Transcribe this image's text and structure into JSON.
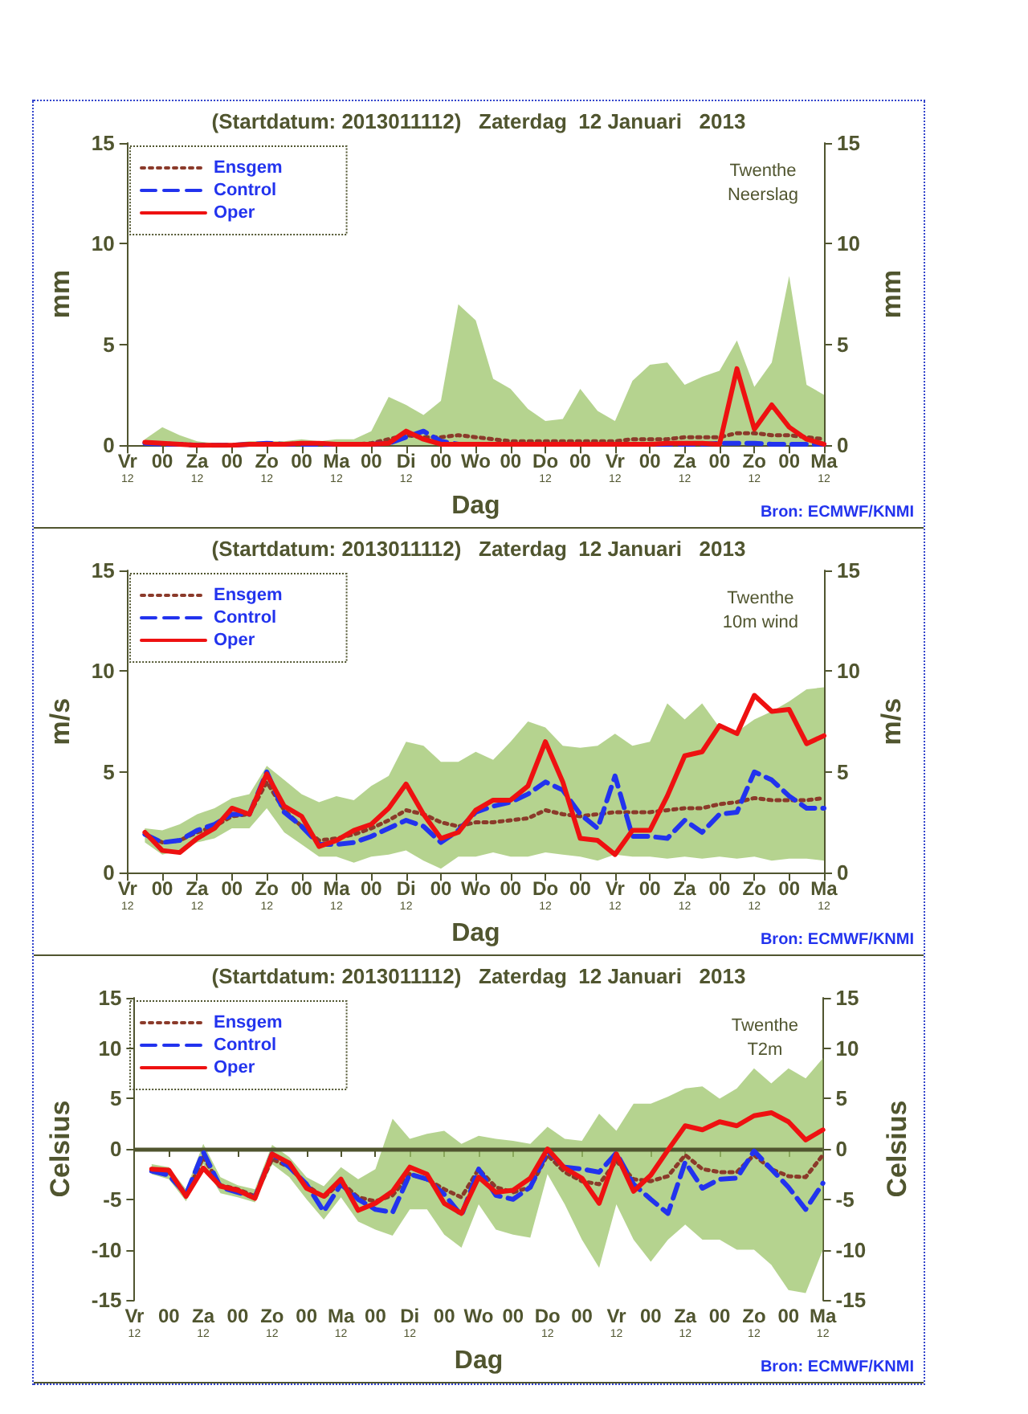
{
  "chart_data": [
    {
      "type": "line",
      "title": "(Startdatum: 2013011112)   Zaterdag  12 Januari   2013",
      "xlabel": "Dag",
      "ylabel": "mm",
      "y2label": "mm",
      "annotations": [
        "Twenthe\nNeerslag",
        "Bron: ECMWF/KNMI"
      ],
      "legend": "top left",
      "marker": "none",
      "categories": [
        "Vr\n12",
        null,
        "00",
        null,
        "Za\n12",
        null,
        "00",
        null,
        "Zo\n12",
        null,
        "00",
        null,
        "Ma\n12",
        null,
        "00",
        null,
        "Di\n12",
        null,
        "00",
        null,
        "Wo",
        null,
        "00",
        null,
        "Do\n12",
        null,
        "00",
        null,
        "Vr\n12",
        null,
        "00",
        null,
        "Za\n12",
        null,
        "00",
        null,
        "Zo\n12",
        null,
        "00",
        null,
        "Ma\n12"
      ],
      "ylim": [
        0,
        15
      ],
      "yticks": [
        0,
        5,
        10,
        15
      ],
      "y2lim": [
        0,
        15
      ],
      "y2ticks": [
        0,
        5,
        10,
        15
      ],
      "series": [
        {
          "name": "Ensgem",
          "color": "#8b3a2a",
          "line_style": "dotted",
          "values": [
            null,
            0.1,
            0.1,
            0.05,
            0,
            0,
            0,
            0.05,
            0.05,
            0.05,
            0.1,
            0.1,
            0.05,
            0.05,
            0.1,
            0.3,
            0.5,
            0.4,
            0.4,
            0.5,
            0.4,
            0.3,
            0.2,
            0.2,
            0.2,
            0.2,
            0.2,
            0.2,
            0.2,
            0.3,
            0.3,
            0.3,
            0.4,
            0.4,
            0.4,
            0.6,
            0.6,
            0.5,
            0.5,
            0.4,
            0.3
          ],
          "lower": [
            null,
            0,
            0,
            0,
            0,
            0,
            0,
            0,
            0,
            0,
            0,
            0,
            0,
            0,
            0,
            0,
            0,
            0,
            0,
            0,
            0,
            0,
            0,
            0,
            0,
            0,
            0,
            0,
            0,
            0,
            0,
            0,
            0,
            0,
            0,
            0,
            0,
            0,
            0,
            0,
            0
          ],
          "upper": [
            null,
            0.3,
            0.9,
            0.5,
            0.2,
            0.1,
            0.1,
            0.2,
            0.2,
            0.2,
            0.3,
            0.2,
            0.3,
            0.3,
            0.7,
            2.4,
            2.0,
            1.5,
            2.2,
            7.0,
            6.2,
            3.3,
            2.8,
            1.8,
            1.2,
            1.3,
            2.8,
            1.7,
            1.2,
            3.2,
            4.0,
            4.1,
            3.0,
            3.4,
            3.7,
            5.2,
            2.9,
            4.1,
            8.4,
            3.0,
            2.5
          ]
        },
        {
          "name": "Control",
          "color": "#2233ee",
          "line_style": "dashed",
          "values": [
            null,
            0.1,
            0.05,
            0.05,
            0,
            0,
            0,
            0.05,
            0.1,
            0.05,
            0.05,
            0.05,
            0.05,
            0.05,
            0.05,
            0.1,
            0.4,
            0.7,
            0.2,
            0.05,
            0.05,
            0.05,
            0.05,
            0.05,
            0.05,
            0.05,
            0.05,
            0.05,
            0.05,
            0.05,
            0.05,
            0.05,
            0.05,
            0.05,
            0.1,
            0.1,
            0.1,
            0.05,
            0.05,
            0.05,
            0.05
          ]
        },
        {
          "name": "Oper",
          "color": "#ee1111",
          "line_style": "solid",
          "values": [
            null,
            0.15,
            0.1,
            0.05,
            0,
            0,
            0,
            0.05,
            0.05,
            0.05,
            0.1,
            0.1,
            0.05,
            0.05,
            0.05,
            0.1,
            0.7,
            0.3,
            0.05,
            0.05,
            0.05,
            0.05,
            0.05,
            0.05,
            0.05,
            0.05,
            0.05,
            0.05,
            0.05,
            0.05,
            0.05,
            0.1,
            0.1,
            0.1,
            0.05,
            3.8,
            0.8,
            2.0,
            0.9,
            0.3,
            0.05
          ]
        }
      ]
    },
    {
      "type": "line",
      "title": "(Startdatum: 2013011112)   Zaterdag  12 Januari   2013",
      "xlabel": "Dag",
      "ylabel": "m/s",
      "y2label": "m/s",
      "annotations": [
        "Twenthe\n10m wind",
        "Bron: ECMWF/KNMI"
      ],
      "legend": "top left",
      "marker": "none",
      "categories": [
        "Vr\n12",
        null,
        "00",
        null,
        "Za\n12",
        null,
        "00",
        null,
        "Zo\n12",
        null,
        "00",
        null,
        "Ma\n12",
        null,
        "00",
        null,
        "Di\n12",
        null,
        "00",
        null,
        "Wo",
        null,
        "00",
        null,
        "Do\n12",
        null,
        "00",
        null,
        "Vr\n12",
        null,
        "00",
        null,
        "Za\n12",
        null,
        "00",
        null,
        "Zo\n12",
        null,
        "00",
        null,
        "Ma\n12"
      ],
      "ylim": [
        0,
        15
      ],
      "yticks": [
        0,
        5,
        10,
        15
      ],
      "y2lim": [
        0,
        15
      ],
      "y2ticks": [
        0,
        5,
        10,
        15
      ],
      "series": [
        {
          "name": "Ensgem",
          "color": "#8b3a2a",
          "line_style": "dotted",
          "values": [
            null,
            1.9,
            1.5,
            1.6,
            2.0,
            2.3,
            2.8,
            2.9,
            4.5,
            3.1,
            2.3,
            1.6,
            1.7,
            1.9,
            2.2,
            2.6,
            3.1,
            2.9,
            2.5,
            2.3,
            2.5,
            2.5,
            2.6,
            2.7,
            3.1,
            2.9,
            2.8,
            2.9,
            3.0,
            3.0,
            3.0,
            3.1,
            3.2,
            3.2,
            3.4,
            3.5,
            3.7,
            3.6,
            3.6,
            3.6,
            3.7
          ],
          "lower": [
            null,
            1.5,
            0.9,
            1.1,
            1.5,
            1.7,
            2.2,
            2.2,
            3.2,
            2.0,
            1.4,
            0.8,
            0.8,
            0.5,
            0.8,
            0.9,
            1.1,
            0.6,
            0.2,
            0.8,
            0.8,
            1.0,
            0.8,
            0.8,
            1.0,
            0.9,
            0.8,
            0.6,
            0.9,
            0.8,
            0.8,
            0.7,
            0.8,
            0.7,
            0.8,
            0.7,
            0.8,
            0.6,
            0.7,
            0.7,
            0.6
          ],
          "upper": [
            null,
            2.2,
            2.1,
            2.4,
            2.9,
            3.2,
            3.7,
            3.9,
            5.3,
            4.6,
            3.9,
            3.5,
            3.8,
            3.6,
            4.3,
            4.8,
            6.5,
            6.3,
            5.5,
            5.5,
            6.0,
            5.6,
            6.5,
            7.5,
            7.2,
            6.3,
            6.2,
            6.3,
            6.9,
            6.3,
            6.5,
            8.4,
            7.6,
            8.4,
            7.2,
            7.0,
            7.6,
            8.0,
            8.5,
            9.1,
            9.2
          ]
        },
        {
          "name": "Control",
          "color": "#2233ee",
          "line_style": "dashed",
          "values": [
            null,
            1.9,
            1.5,
            1.6,
            2.1,
            2.4,
            2.9,
            2.9,
            5.0,
            3.0,
            2.3,
            1.4,
            1.4,
            1.5,
            1.8,
            2.2,
            2.6,
            2.3,
            1.5,
            2.1,
            3.0,
            3.3,
            3.5,
            3.9,
            4.5,
            4.1,
            2.9,
            2.2,
            4.8,
            1.8,
            1.8,
            1.7,
            2.6,
            2.0,
            2.9,
            3.0,
            5.0,
            4.6,
            3.8,
            3.2,
            3.2
          ]
        },
        {
          "name": "Oper",
          "color": "#ee1111",
          "line_style": "solid",
          "values": [
            null,
            2.0,
            1.1,
            1.0,
            1.7,
            2.2,
            3.2,
            2.9,
            4.9,
            3.3,
            2.8,
            1.3,
            1.6,
            2.1,
            2.4,
            3.2,
            4.4,
            2.9,
            1.7,
            2.0,
            3.1,
            3.6,
            3.6,
            4.3,
            6.5,
            4.5,
            1.7,
            1.6,
            0.9,
            2.1,
            2.1,
            3.8,
            5.8,
            6.0,
            7.3,
            6.9,
            8.8,
            8.0,
            8.1,
            6.4,
            6.8
          ]
        }
      ]
    },
    {
      "type": "line",
      "title": "(Startdatum: 2013011112)   Zaterdag  12 Januari   2013",
      "xlabel": "Dag",
      "ylabel": "Celsius",
      "y2label": "Celsius",
      "annotations": [
        "Twenthe\nT2m",
        "Bron: ECMWF/KNMI"
      ],
      "legend": "top left",
      "marker": "none",
      "categories": [
        "Vr\n12",
        null,
        "00",
        null,
        "Za\n12",
        null,
        "00",
        null,
        "Zo\n12",
        null,
        "00",
        null,
        "Ma\n12",
        null,
        "00",
        null,
        "Di\n12",
        null,
        "00",
        null,
        "Wo",
        null,
        "00",
        null,
        "Do\n12",
        null,
        "00",
        null,
        "Vr\n12",
        null,
        "00",
        null,
        "Za\n12",
        null,
        "00",
        null,
        "Zo\n12",
        null,
        "00",
        null,
        "Ma\n12"
      ],
      "ylim": [
        -15,
        15
      ],
      "yticks": [
        -15,
        -10,
        -5,
        0,
        5,
        10,
        15
      ],
      "y2lim": [
        -15,
        15
      ],
      "y2ticks": [
        -15,
        -10,
        -5,
        0,
        5,
        10,
        15
      ],
      "ref_lines": [
        {
          "axis": "y",
          "value": 0,
          "label": null,
          "color": "#50552f"
        }
      ],
      "series": [
        {
          "name": "Ensgem",
          "color": "#8b3a2a",
          "line_style": "dotted",
          "values": [
            null,
            -2.0,
            -2.3,
            -4.6,
            -0.8,
            -3.6,
            -4.0,
            -4.7,
            -1.0,
            -1.8,
            -3.6,
            -4.8,
            -3.3,
            -4.8,
            -5.2,
            -4.6,
            -2.5,
            -3.0,
            -4.0,
            -4.8,
            -2.0,
            -3.8,
            -4.3,
            -3.8,
            -0.6,
            -2.3,
            -3.2,
            -3.5,
            -1.2,
            -3.0,
            -3.2,
            -2.7,
            -0.6,
            -2.0,
            -2.3,
            -2.3,
            -0.6,
            -2.0,
            -2.7,
            -2.8,
            -0.6
          ],
          "lower": [
            null,
            -2.5,
            -3.0,
            -5.2,
            -1.5,
            -4.4,
            -4.8,
            -5.3,
            -1.5,
            -2.8,
            -5.0,
            -7.0,
            -4.8,
            -7.2,
            -8.0,
            -8.6,
            -6.0,
            -6.0,
            -8.5,
            -9.8,
            -5.5,
            -8.0,
            -8.5,
            -8.8,
            -2.5,
            -5.5,
            -9.0,
            -11.8,
            -5.5,
            -9.0,
            -11.2,
            -9.0,
            -7.5,
            -9.0,
            -9.0,
            -10.0,
            -10.0,
            -11.5,
            -14.0,
            -14.3,
            -10.0
          ],
          "upper": [
            null,
            -1.5,
            -1.8,
            -4.0,
            0.5,
            -2.8,
            -3.6,
            -4.0,
            0.4,
            -0.8,
            -2.8,
            -3.7,
            -1.8,
            -3.0,
            -2.0,
            3.0,
            1.0,
            1.5,
            1.8,
            0.5,
            1.3,
            1.0,
            0.8,
            0.5,
            2.2,
            1.0,
            0.8,
            3.5,
            1.8,
            4.5,
            4.5,
            5.2,
            6.0,
            6.2,
            5.0,
            6.0,
            8.0,
            6.5,
            8.0,
            7.0,
            9.0
          ]
        },
        {
          "name": "Control",
          "color": "#2233ee",
          "line_style": "dashed",
          "values": [
            null,
            -2.2,
            -2.6,
            -4.5,
            -0.3,
            -3.8,
            -4.3,
            -4.8,
            -0.5,
            -1.8,
            -3.5,
            -6.2,
            -3.5,
            -5.0,
            -6.0,
            -6.3,
            -2.5,
            -3.0,
            -4.5,
            -6.6,
            -2.0,
            -4.6,
            -5.0,
            -3.8,
            -0.2,
            -1.8,
            -2.0,
            -2.3,
            -0.4,
            -3.5,
            -5.0,
            -6.4,
            -1.3,
            -3.9,
            -3.0,
            -2.9,
            -0.2,
            -2.0,
            -3.8,
            -6.0,
            -3.4
          ]
        },
        {
          "name": "Oper",
          "color": "#ee1111",
          "line_style": "solid",
          "values": [
            null,
            -2.0,
            -2.1,
            -4.7,
            -1.9,
            -3.7,
            -4.1,
            -4.9,
            -0.5,
            -1.4,
            -3.9,
            -4.7,
            -3.0,
            -6.1,
            -5.4,
            -4.2,
            -1.8,
            -2.5,
            -5.4,
            -6.4,
            -2.8,
            -4.3,
            -4.1,
            -2.9,
            0.0,
            -1.9,
            -2.9,
            -5.4,
            -0.5,
            -4.2,
            -2.6,
            -0.1,
            2.3,
            1.9,
            2.7,
            2.3,
            3.3,
            3.6,
            2.7,
            0.9,
            1.9
          ]
        }
      ]
    }
  ]
}
